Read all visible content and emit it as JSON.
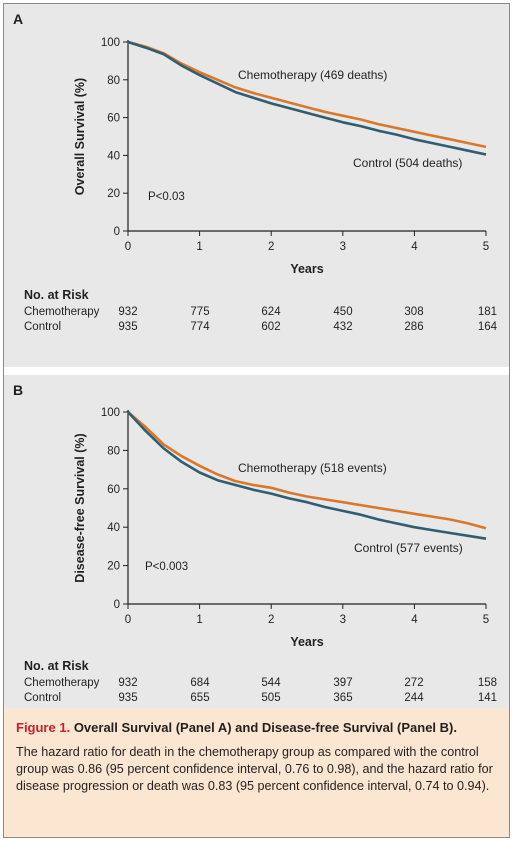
{
  "panels": [
    {
      "id": "A",
      "label": "A",
      "ylabel": "Overall Survival (%)",
      "xlabel": "Years",
      "pvalue": "P<0.03",
      "risk_title": "No. at Risk",
      "risk_rows": [
        {
          "name": "Chemotherapy",
          "values": [
            "932",
            "775",
            "624",
            "450",
            "308",
            "181"
          ]
        },
        {
          "name": "Control",
          "values": [
            "935",
            "774",
            "602",
            "432",
            "286",
            "164"
          ]
        }
      ]
    },
    {
      "id": "B",
      "label": "B",
      "ylabel": "Disease-free Survival (%)",
      "xlabel": "Years",
      "pvalue": "P<0.003",
      "risk_title": "No. at Risk",
      "risk_rows": [
        {
          "name": "Chemotherapy",
          "values": [
            "932",
            "684",
            "544",
            "397",
            "272",
            "158"
          ]
        },
        {
          "name": "Control",
          "values": [
            "935",
            "655",
            "505",
            "365",
            "244",
            "141"
          ]
        }
      ]
    }
  ],
  "colors": {
    "chemotherapy": "#d9782d",
    "control": "#2f5e72",
    "panel_bg": "#e8e8e9",
    "caption_bg": "#fbe6d2",
    "figure_label": "#c8202f"
  },
  "chart_data": [
    {
      "type": "line",
      "title": "",
      "xlabel": "Years",
      "ylabel": "Overall Survival (%)",
      "xlim": [
        0,
        5
      ],
      "ylim": [
        0,
        100
      ],
      "xticks": [
        "0",
        "1",
        "2",
        "3",
        "4",
        "5"
      ],
      "yticks": [
        "0",
        "20",
        "40",
        "60",
        "80",
        "100"
      ],
      "annotations": [
        "P<0.03"
      ],
      "series": [
        {
          "name": "Chemotherapy (469 deaths)",
          "color": "#d9782d",
          "x": [
            0,
            0.25,
            0.5,
            0.75,
            1.0,
            1.25,
            1.5,
            1.75,
            2.0,
            2.25,
            2.5,
            2.75,
            3.0,
            3.25,
            3.5,
            3.75,
            4.0,
            4.25,
            4.5,
            4.75,
            5.0
          ],
          "y": [
            100,
            97.5,
            94,
            88.5,
            84,
            80,
            76,
            73,
            70.5,
            68,
            65.5,
            63,
            61,
            59,
            56.5,
            54.5,
            52.5,
            50.5,
            48.5,
            46.5,
            44.5
          ]
        },
        {
          "name": "Control (504 deaths)",
          "color": "#2f5e72",
          "x": [
            0,
            0.25,
            0.5,
            0.75,
            1.0,
            1.25,
            1.5,
            1.75,
            2.0,
            2.25,
            2.5,
            2.75,
            3.0,
            3.25,
            3.5,
            3.75,
            4.0,
            4.25,
            4.5,
            4.75,
            5.0
          ],
          "y": [
            100,
            97,
            93.5,
            87.5,
            82.5,
            78,
            73.5,
            70.5,
            67.5,
            65,
            62.5,
            60,
            57.5,
            55.5,
            53,
            51,
            48.5,
            46.5,
            44.5,
            42.5,
            40.5
          ]
        }
      ]
    },
    {
      "type": "line",
      "title": "",
      "xlabel": "Years",
      "ylabel": "Disease-free Survival (%)",
      "xlim": [
        0,
        5
      ],
      "ylim": [
        0,
        100
      ],
      "xticks": [
        "0",
        "1",
        "2",
        "3",
        "4",
        "5"
      ],
      "yticks": [
        "0",
        "20",
        "40",
        "60",
        "80",
        "100"
      ],
      "annotations": [
        "P<0.003"
      ],
      "series": [
        {
          "name": "Chemotherapy (518 events)",
          "color": "#d9782d",
          "x": [
            0,
            0.25,
            0.5,
            0.75,
            1.0,
            1.25,
            1.5,
            1.75,
            2.0,
            2.25,
            2.5,
            2.75,
            3.0,
            3.25,
            3.5,
            3.75,
            4.0,
            4.25,
            4.5,
            4.75,
            5.0
          ],
          "y": [
            100,
            92,
            83,
            77,
            72,
            67.5,
            64,
            62,
            60.5,
            58,
            56,
            54.5,
            53,
            51.5,
            50,
            48.5,
            47,
            45.5,
            44,
            42,
            39.5
          ]
        },
        {
          "name": "Control (577 events)",
          "color": "#2f5e72",
          "x": [
            0,
            0.25,
            0.5,
            0.75,
            1.0,
            1.25,
            1.5,
            1.75,
            2.0,
            2.25,
            2.5,
            2.75,
            3.0,
            3.25,
            3.5,
            3.75,
            4.0,
            4.25,
            4.5,
            4.75,
            5.0
          ],
          "y": [
            100,
            90,
            81,
            74,
            68.5,
            64.5,
            62,
            59.5,
            57.5,
            55,
            53,
            50.5,
            48.5,
            46.5,
            44,
            42,
            40,
            38.5,
            37,
            35.5,
            34
          ]
        }
      ]
    }
  ],
  "caption": {
    "figure_label": "Figure 1.",
    "title": "Overall Survival (Panel A) and Disease-free Survival (Panel B).",
    "body": "The hazard ratio for death in the chemotherapy group as compared with the control group was 0.86 (95 percent confidence interval, 0.76 to 0.98), and the hazard ratio for disease progression or death was 0.83 (95 percent confidence interval, 0.74 to 0.94)."
  }
}
